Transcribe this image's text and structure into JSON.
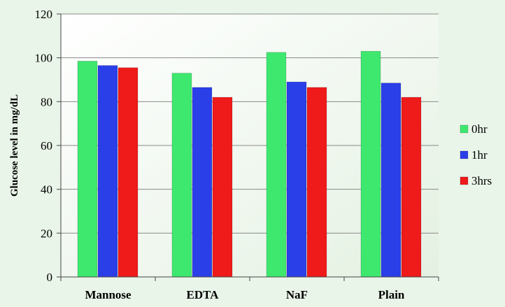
{
  "chart_data": {
    "type": "bar",
    "title": "",
    "xlabel": "",
    "ylabel": "Glucose level in mg/dL",
    "ylim": [
      0,
      120
    ],
    "yticks": [
      0,
      20,
      40,
      60,
      80,
      100,
      120
    ],
    "grid": true,
    "legend_position": "right",
    "categories": [
      "Mannose",
      "EDTA",
      "NaF",
      "Plain"
    ],
    "series": [
      {
        "name": "0hr",
        "color": "#3ee86f",
        "values": [
          98.5,
          93,
          102.5,
          103
        ]
      },
      {
        "name": "1hr",
        "color": "#2b3fe8",
        "values": [
          96.5,
          86.5,
          89,
          88.5
        ]
      },
      {
        "name": "3hrs",
        "color": "#ef1a1a",
        "values": [
          95.5,
          82,
          86.5,
          82
        ]
      }
    ]
  }
}
